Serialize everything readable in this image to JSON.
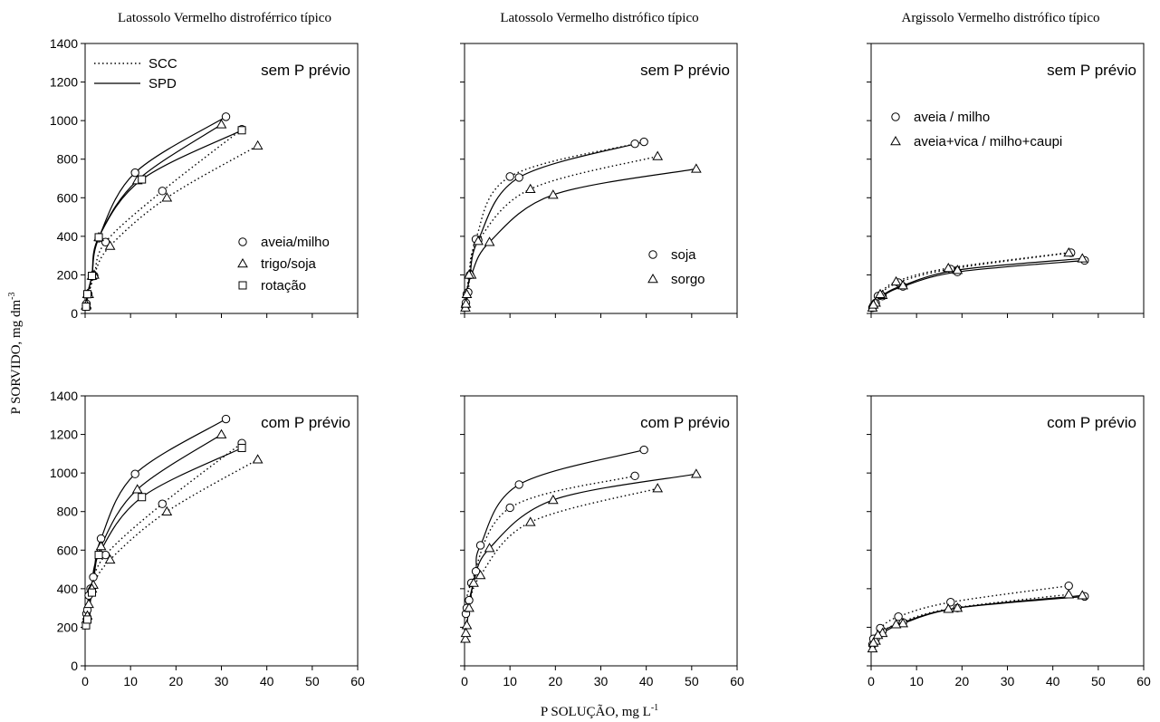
{
  "figure": {
    "ylabel": "P SORVIDO, mg dm",
    "ylabel_sup": "-3",
    "xlabel": "P SOLUÇÃO, mg L",
    "xlabel_sup": "-1",
    "columns": [
      "Latossolo Vermelho distroférrico típico",
      "Latossolo Vermelho distrófico típico",
      "Argissolo Vermelho distrófico típico"
    ],
    "rows": [
      "sem P prévio",
      "com P prévio"
    ],
    "line_legend": [
      {
        "label": "SCC",
        "style": "dotted"
      },
      {
        "label": "SPD",
        "style": "solid"
      }
    ]
  },
  "chart_data": [
    {
      "type": "scatter",
      "title": "Latossolo Vermelho distroférrico típico",
      "annotation": "sem P prévio",
      "xlim": [
        0,
        60
      ],
      "ylim": [
        0,
        1400
      ],
      "xticks": [
        0,
        10,
        20,
        30,
        40,
        50,
        60
      ],
      "yticks": [
        0,
        200,
        400,
        600,
        800,
        1000,
        1200,
        1400
      ],
      "show_x_labels": false,
      "show_y_labels": true,
      "legend": [
        {
          "label": "aveia/milho",
          "marker": "circle"
        },
        {
          "label": "trigo/soja",
          "marker": "triangle"
        },
        {
          "label": "rotação",
          "marker": "square"
        }
      ],
      "series": [
        {
          "name": "aveia/milho",
          "method": "SPD",
          "marker": "circle",
          "line": "solid",
          "x": [
            0.2,
            0.5,
            1.5,
            3,
            11,
            31
          ],
          "y": [
            40,
            100,
            195,
            390,
            730,
            1020
          ]
        },
        {
          "name": "aveia/milho",
          "method": "SCC",
          "marker": "circle",
          "line": "dotted",
          "x": [
            0.3,
            0.7,
            2,
            4.5,
            17,
            34.5
          ],
          "y": [
            50,
            100,
            195,
            370,
            635,
            955
          ]
        },
        {
          "name": "trigo/soja",
          "method": "SPD",
          "marker": "triangle",
          "line": "solid",
          "x": [
            0.2,
            0.5,
            1.5,
            3,
            11.5,
            30
          ],
          "y": [
            40,
            100,
            195,
            395,
            690,
            980
          ]
        },
        {
          "name": "trigo/soja",
          "method": "SCC",
          "marker": "triangle",
          "line": "dotted",
          "x": [
            0.3,
            0.8,
            2,
            5.5,
            18,
            38
          ],
          "y": [
            45,
            100,
            200,
            350,
            600,
            870
          ]
        },
        {
          "name": "rotação",
          "method": "SPD",
          "marker": "square",
          "line": "solid",
          "x": [
            0.2,
            0.5,
            1.5,
            3,
            12.5,
            34.5
          ],
          "y": [
            35,
            100,
            195,
            395,
            695,
            950
          ]
        }
      ]
    },
    {
      "type": "scatter",
      "title": "Latossolo Vermelho distrófico típico",
      "annotation": "sem P prévio",
      "xlim": [
        0,
        60
      ],
      "ylim": [
        0,
        1400
      ],
      "xticks": [
        0,
        10,
        20,
        30,
        40,
        50,
        60
      ],
      "yticks": [
        0,
        200,
        400,
        600,
        800,
        1000,
        1200,
        1400
      ],
      "show_x_labels": false,
      "show_y_labels": false,
      "legend": [
        {
          "label": "soja",
          "marker": "circle"
        },
        {
          "label": "sorgo",
          "marker": "triangle"
        }
      ],
      "series": [
        {
          "name": "soja",
          "method": "SPD",
          "marker": "circle",
          "line": "solid",
          "x": [
            0.2,
            0.5,
            1.2,
            3,
            12,
            39.5
          ],
          "y": [
            35,
            100,
            200,
            380,
            705,
            890
          ]
        },
        {
          "name": "soja",
          "method": "SCC",
          "marker": "circle",
          "line": "dotted",
          "x": [
            0.3,
            0.8,
            2.5,
            10,
            37.5
          ],
          "y": [
            55,
            110,
            385,
            710,
            880
          ]
        },
        {
          "name": "sorgo",
          "method": "SPD",
          "marker": "triangle",
          "line": "solid",
          "x": [
            0.2,
            0.5,
            1.5,
            5.5,
            19.5,
            51
          ],
          "y": [
            30,
            100,
            200,
            370,
            615,
            750
          ]
        },
        {
          "name": "sorgo",
          "method": "SCC",
          "marker": "triangle",
          "line": "dotted",
          "x": [
            0.3,
            1,
            3,
            14.5,
            42.5
          ],
          "y": [
            50,
            200,
            375,
            645,
            815
          ]
        }
      ]
    },
    {
      "type": "scatter",
      "title": "Argissolo Vermelho distrófico típico",
      "annotation": "sem P prévio",
      "xlim": [
        0,
        60
      ],
      "ylim": [
        0,
        1400
      ],
      "xticks": [
        0,
        10,
        20,
        30,
        40,
        50,
        60
      ],
      "yticks": [
        0,
        200,
        400,
        600,
        800,
        1000,
        1200,
        1400
      ],
      "show_x_labels": false,
      "show_y_labels": false,
      "legend": [
        {
          "label": "aveia / milho",
          "marker": "circle"
        },
        {
          "label": "aveia+vica / milho+caupi",
          "marker": "triangle"
        }
      ],
      "series": [
        {
          "name": "aveia / milho",
          "method": "SPD",
          "marker": "circle",
          "line": "solid",
          "x": [
            0.3,
            1,
            2.5,
            7,
            19,
            47
          ],
          "y": [
            30,
            55,
            90,
            140,
            215,
            275
          ]
        },
        {
          "name": "aveia / milho",
          "method": "SCC",
          "marker": "circle",
          "line": "dotted",
          "x": [
            0.5,
            1.5,
            6,
            17.5,
            44
          ],
          "y": [
            40,
            90,
            160,
            230,
            315
          ]
        },
        {
          "name": "aveia+vica / milho+caupi",
          "method": "SPD",
          "marker": "triangle",
          "line": "solid",
          "x": [
            0.3,
            1,
            2.5,
            7,
            19,
            46.5
          ],
          "y": [
            30,
            55,
            95,
            145,
            225,
            285
          ]
        },
        {
          "name": "aveia+vica / milho+caupi",
          "method": "SCC",
          "marker": "triangle",
          "line": "dotted",
          "x": [
            0.5,
            2,
            5.5,
            17,
            43.5
          ],
          "y": [
            45,
            100,
            165,
            235,
            315
          ]
        }
      ]
    },
    {
      "type": "scatter",
      "title": "",
      "annotation": "com P prévio",
      "xlim": [
        0,
        60
      ],
      "ylim": [
        0,
        1400
      ],
      "xticks": [
        0,
        10,
        20,
        30,
        40,
        50,
        60
      ],
      "yticks": [
        0,
        200,
        400,
        600,
        800,
        1000,
        1200,
        1400
      ],
      "show_x_labels": true,
      "show_y_labels": true,
      "legend": [],
      "series": [
        {
          "name": "aveia/milho",
          "method": "SPD",
          "marker": "circle",
          "line": "solid",
          "x": [
            0.3,
            0.8,
            1.8,
            3.5,
            11,
            31
          ],
          "y": [
            270,
            365,
            460,
            660,
            995,
            1280
          ]
        },
        {
          "name": "aveia/milho",
          "method": "SCC",
          "marker": "circle",
          "line": "dotted",
          "x": [
            0.5,
            1.2,
            4.5,
            17,
            34.5
          ],
          "y": [
            290,
            400,
            575,
            840,
            1155
          ]
        },
        {
          "name": "trigo/soja",
          "method": "SPD",
          "marker": "triangle",
          "line": "solid",
          "x": [
            0.3,
            0.8,
            1.8,
            3.5,
            11.5,
            30
          ],
          "y": [
            240,
            320,
            420,
            620,
            915,
            1200
          ]
        },
        {
          "name": "trigo/soja",
          "method": "SCC",
          "marker": "triangle",
          "line": "dotted",
          "x": [
            0.5,
            1.5,
            5.5,
            18,
            38
          ],
          "y": [
            260,
            400,
            550,
            800,
            1070
          ]
        },
        {
          "name": "rotação",
          "method": "SPD",
          "marker": "square",
          "line": "solid",
          "x": [
            0.2,
            0.5,
            1.5,
            3,
            12.5,
            34.5
          ],
          "y": [
            210,
            240,
            380,
            575,
            875,
            1130
          ]
        }
      ]
    },
    {
      "type": "scatter",
      "title": "",
      "annotation": "com P prévio",
      "xlim": [
        0,
        60
      ],
      "ylim": [
        0,
        1400
      ],
      "xticks": [
        0,
        10,
        20,
        30,
        40,
        50,
        60
      ],
      "yticks": [
        0,
        200,
        400,
        600,
        800,
        1000,
        1200,
        1400
      ],
      "show_x_labels": true,
      "show_y_labels": false,
      "legend": [],
      "series": [
        {
          "name": "soja",
          "method": "SPD",
          "marker": "circle",
          "line": "solid",
          "x": [
            0.3,
            1,
            2.5,
            3.5,
            12,
            39.5
          ],
          "y": [
            270,
            340,
            490,
            625,
            940,
            1120
          ]
        },
        {
          "name": "soja",
          "method": "SCC",
          "marker": "circle",
          "line": "dotted",
          "x": [
            0.5,
            1.5,
            10,
            37.5
          ],
          "y": [
            300,
            430,
            820,
            985
          ]
        },
        {
          "name": "sorgo",
          "method": "SPD",
          "marker": "triangle",
          "line": "solid",
          "x": [
            0.2,
            0.5,
            2,
            5.5,
            19.5,
            51
          ],
          "y": [
            140,
            210,
            430,
            610,
            860,
            995
          ]
        },
        {
          "name": "sorgo",
          "method": "SCC",
          "marker": "triangle",
          "line": "dotted",
          "x": [
            0.3,
            1,
            3.5,
            14.5,
            42.5
          ],
          "y": [
            170,
            300,
            470,
            745,
            920
          ]
        }
      ]
    },
    {
      "type": "scatter",
      "title": "",
      "annotation": "com P prévio",
      "xlim": [
        0,
        60
      ],
      "ylim": [
        0,
        1400
      ],
      "xticks": [
        0,
        10,
        20,
        30,
        40,
        50,
        60
      ],
      "yticks": [
        0,
        200,
        400,
        600,
        800,
        1000,
        1200,
        1400
      ],
      "show_x_labels": true,
      "show_y_labels": false,
      "legend": [],
      "series": [
        {
          "name": "aveia / milho",
          "method": "SPD",
          "marker": "circle",
          "line": "solid",
          "x": [
            0.3,
            1,
            2.5,
            7,
            19,
            47
          ],
          "y": [
            110,
            140,
            180,
            225,
            300,
            360
          ]
        },
        {
          "name": "aveia / milho",
          "method": "SCC",
          "marker": "circle",
          "line": "dotted",
          "x": [
            0.5,
            2,
            6,
            17.5,
            43.5
          ],
          "y": [
            140,
            195,
            255,
            330,
            415
          ]
        },
        {
          "name": "aveia+vica / milho+caupi",
          "method": "SPD",
          "marker": "triangle",
          "line": "solid",
          "x": [
            0.3,
            1,
            2.5,
            7,
            19,
            46.5
          ],
          "y": [
            90,
            130,
            170,
            220,
            300,
            365
          ]
        },
        {
          "name": "aveia+vica / milho+caupi",
          "method": "SCC",
          "marker": "triangle",
          "line": "dotted",
          "x": [
            0.5,
            1.5,
            5.5,
            17,
            43.5
          ],
          "y": [
            120,
            160,
            215,
            295,
            370
          ]
        }
      ]
    }
  ]
}
